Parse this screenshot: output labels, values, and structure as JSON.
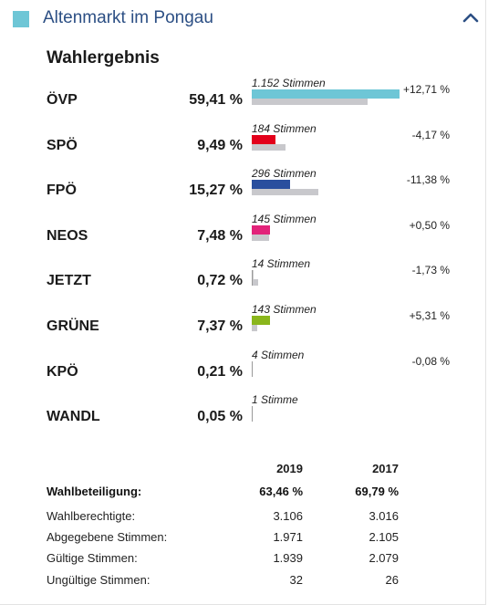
{
  "header": {
    "region": "Altenmarkt im Pongau",
    "color": "#6ec6d6"
  },
  "section_title": "Wahlergebnis",
  "chart_data": {
    "type": "bar",
    "categories": [
      "ÖVP",
      "SPÖ",
      "FPÖ",
      "NEOS",
      "JETZT",
      "GRÜNE",
      "KPÖ",
      "WANDL"
    ],
    "series": [
      {
        "values": [
          59.41,
          9.49,
          15.27,
          7.48,
          0.72,
          7.37,
          0.21,
          0.05
        ]
      },
      {
        "values": [
          46.7,
          13.66,
          26.65,
          6.98,
          2.45,
          2.06,
          0.29,
          0
        ]
      }
    ],
    "percent_labels": [
      "59,41 %",
      "9,49 %",
      "15,27 %",
      "7,48 %",
      "0,72 %",
      "7,37 %",
      "0,21 %",
      "0,05 %"
    ],
    "vote_labels": [
      "1.152 Stimmen",
      "184 Stimmen",
      "296 Stimmen",
      "145 Stimmen",
      "14 Stimmen",
      "143 Stimmen",
      "4 Stimmen",
      "1 Stimme"
    ],
    "change_labels": [
      "+12,71 %",
      "-4,17 %",
      "-11,38 %",
      "+0,50 %",
      "-1,73 %",
      "+5,31 %",
      "-0,08 %",
      ""
    ],
    "colors": [
      "#6ec6d6",
      "#e3001b",
      "#2a4f9e",
      "#e2237a",
      "#cccccc",
      "#8ab61c",
      "#c8c8cc",
      "#c8c8cc"
    ],
    "previous_color": "#c8c8cc"
  },
  "stats": {
    "year_current": "2019",
    "year_previous": "2017",
    "rows": [
      {
        "label": "Wahlbeteiligung:",
        "current": "63,46 %",
        "previous": "69,79 %"
      },
      {
        "label": "Wahlberechtigte:",
        "current": "3.106",
        "previous": "3.016"
      },
      {
        "label": "Abgegebene Stimmen:",
        "current": "1.971",
        "previous": "2.105"
      },
      {
        "label": "Gültige Stimmen:",
        "current": "1.939",
        "previous": "2.079"
      },
      {
        "label": "Ungültige Stimmen:",
        "current": "32",
        "previous": "26"
      }
    ]
  }
}
